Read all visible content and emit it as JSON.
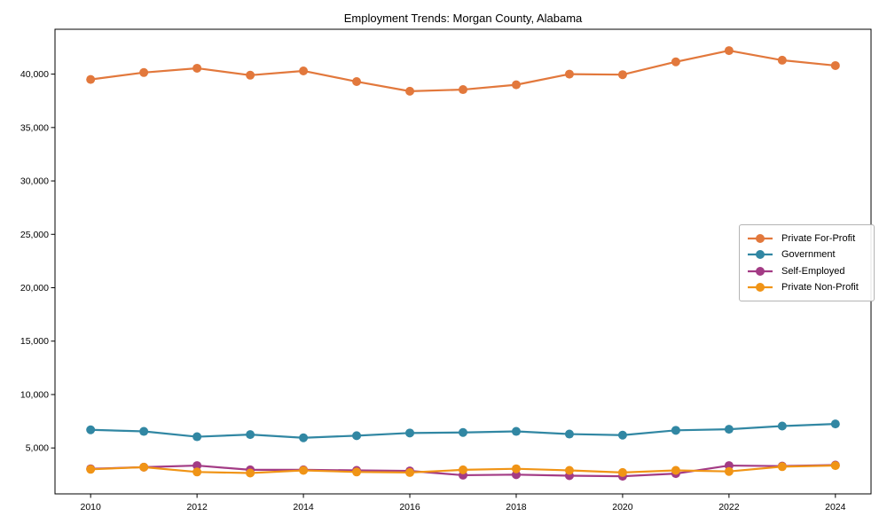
{
  "figure": {
    "background": "#ffffff",
    "frame_color": "#000000"
  },
  "chart_data": {
    "type": "line",
    "title": "Employment Trends: Morgan County, Alabama",
    "xlabel": "",
    "ylabel": "",
    "grid": false,
    "legend_position": "center right",
    "marker": "circle",
    "xlim": [
      2009.33,
      2024.67
    ],
    "ylim": [
      700,
      44200
    ],
    "x_ticks": [
      2010,
      2012,
      2014,
      2016,
      2018,
      2020,
      2022,
      2024
    ],
    "y_ticks": [
      5000,
      10000,
      15000,
      20000,
      25000,
      30000,
      35000,
      40000
    ],
    "y_tick_labels": [
      "5,000",
      "10,000",
      "15,000",
      "20,000",
      "25,000",
      "30,000",
      "35,000",
      "40,000"
    ],
    "x": [
      2010,
      2011,
      2012,
      2013,
      2014,
      2015,
      2016,
      2017,
      2018,
      2019,
      2020,
      2021,
      2022,
      2023,
      2024
    ],
    "series": [
      {
        "name": "Private For-Profit",
        "color": "#E2783C",
        "values": [
          39500,
          40150,
          40550,
          39900,
          40300,
          39300,
          38400,
          38550,
          39000,
          40000,
          39950,
          41150,
          42200,
          41300,
          40800
        ]
      },
      {
        "name": "Government",
        "color": "#3187A3",
        "values": [
          6700,
          6550,
          6050,
          6250,
          5950,
          6150,
          6400,
          6450,
          6550,
          6300,
          6200,
          6650,
          6750,
          7050,
          7250
        ]
      },
      {
        "name": "Self-Employed",
        "color": "#A33B85",
        "values": [
          3050,
          3200,
          3350,
          2950,
          2950,
          2900,
          2850,
          2450,
          2500,
          2400,
          2350,
          2600,
          3350,
          3300,
          3400
        ]
      },
      {
        "name": "Private Non-Profit",
        "color": "#F09416",
        "values": [
          3000,
          3200,
          2750,
          2650,
          2900,
          2750,
          2700,
          2950,
          3050,
          2900,
          2700,
          2900,
          2800,
          3250,
          3350
        ]
      }
    ]
  }
}
